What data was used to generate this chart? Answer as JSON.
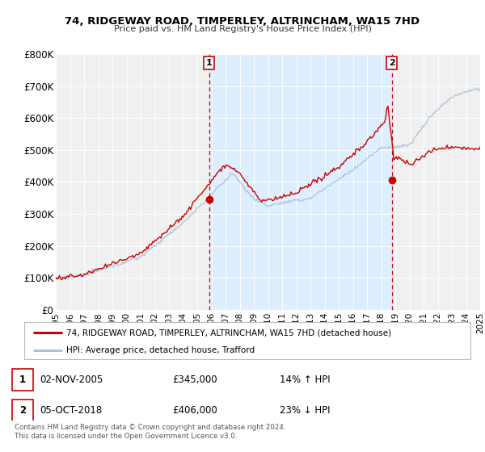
{
  "title": "74, RIDGEWAY ROAD, TIMPERLEY, ALTRINCHAM, WA15 7HD",
  "subtitle": "Price paid vs. HM Land Registry's House Price Index (HPI)",
  "ylim": [
    0,
    800000
  ],
  "yticks": [
    0,
    100000,
    200000,
    300000,
    400000,
    500000,
    600000,
    700000,
    800000
  ],
  "ytick_labels": [
    "£0",
    "£100K",
    "£200K",
    "£300K",
    "£400K",
    "£500K",
    "£600K",
    "£700K",
    "£800K"
  ],
  "sale1_date_num": 2005.84,
  "sale1_price": 345000,
  "sale1_label": "1",
  "sale2_date_num": 2018.76,
  "sale2_price": 406000,
  "sale2_label": "2",
  "hpi_color": "#aac4e0",
  "price_color": "#cc0000",
  "vline_color": "#cc0000",
  "shade_color": "#ddeeff",
  "grid_color": "#d8d8d8",
  "background_color": "#f0f0f0",
  "legend1": "74, RIDGEWAY ROAD, TIMPERLEY, ALTRINCHAM, WA15 7HD (detached house)",
  "legend2": "HPI: Average price, detached house, Trafford",
  "note1_date": "02-NOV-2005",
  "note1_price": "£345,000",
  "note1_hpi": "14% ↑ HPI",
  "note2_date": "05-OCT-2018",
  "note2_price": "£406,000",
  "note2_hpi": "23% ↓ HPI",
  "footer": "Contains HM Land Registry data © Crown copyright and database right 2024.\nThis data is licensed under the Open Government Licence v3.0.",
  "xlim_start": 1995,
  "xlim_end": 2025
}
